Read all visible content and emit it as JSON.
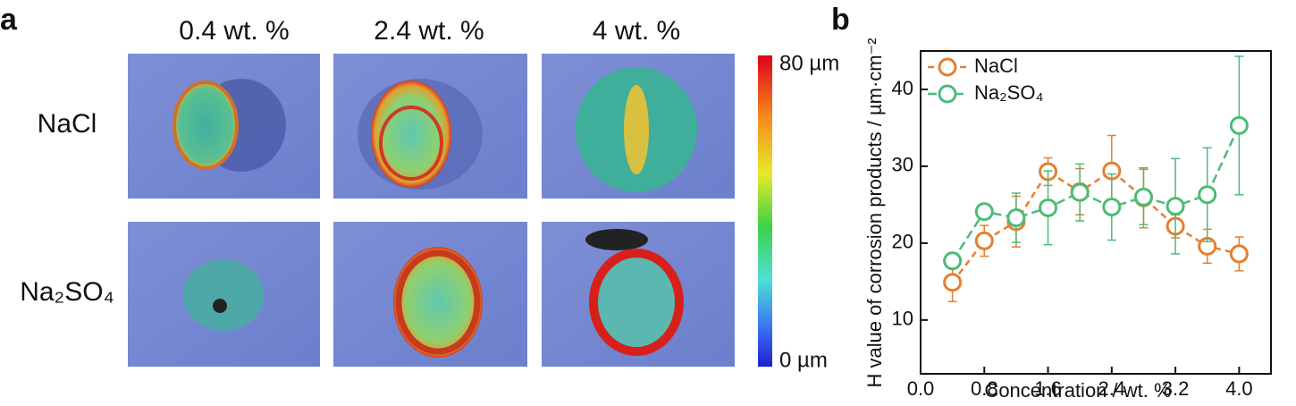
{
  "panel_a": {
    "label": "a",
    "columns": [
      "0.4 wt. %",
      "2.4 wt. %",
      "4 wt. %"
    ],
    "rows": [
      "NaCl",
      "Na₂SO₄"
    ],
    "colorbar": {
      "max_label": "80 µm",
      "min_label": "0 µm"
    }
  },
  "chart_data": {
    "type": "line",
    "panel_label": "b",
    "x_label": "Concentration / wt. %",
    "y_label": "H value of corrosion products / µm·cm⁻²",
    "x": [
      0.4,
      0.8,
      1.2,
      1.6,
      2.0,
      2.4,
      2.8,
      3.2,
      3.6,
      4.0
    ],
    "series": [
      {
        "name": "NaCl",
        "color": "#e57f30",
        "values": [
          14.9,
          20.3,
          22.8,
          29.3,
          26.7,
          29.4,
          25.9,
          22.2,
          19.6,
          18.6
        ],
        "errors": [
          2.5,
          2.0,
          3.3,
          1.8,
          3.0,
          4.6,
          3.9,
          1.5,
          2.2,
          2.2
        ]
      },
      {
        "name": "Na₂SO₄",
        "color": "#4dbb78",
        "values": [
          17.7,
          24.1,
          23.3,
          24.6,
          26.6,
          24.7,
          26.0,
          24.8,
          26.3,
          35.3
        ],
        "errors": [
          0.5,
          0.8,
          3.2,
          4.8,
          3.7,
          4.3,
          3.6,
          6.2,
          6.1,
          9.0
        ]
      }
    ],
    "xlim": [
      0,
      4.4
    ],
    "xticks": [
      {
        "value": 0,
        "label": "0.0"
      },
      0.8,
      1.6,
      2.4,
      3.2,
      {
        "value": 4,
        "label": "4.0"
      }
    ],
    "ylim": [
      3,
      45
    ],
    "yticks": [
      10,
      20,
      30,
      40
    ],
    "legend": "upper-left"
  }
}
